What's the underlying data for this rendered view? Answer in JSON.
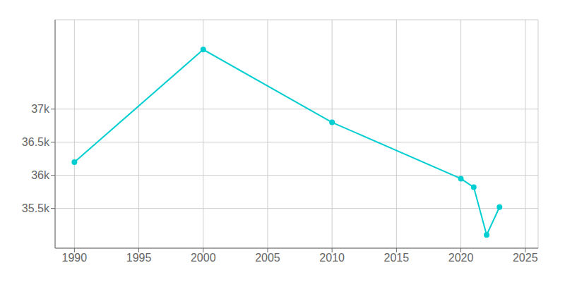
{
  "chart_data": {
    "type": "line",
    "x": [
      1990,
      2000,
      2010,
      2020,
      2021,
      2022,
      2023
    ],
    "values": [
      36200,
      37900,
      36800,
      35950,
      35820,
      35100,
      35520
    ],
    "color": "#00CED1",
    "marker": "circle",
    "xlim": [
      1988.5,
      2026
    ],
    "ylim": [
      34900,
      38350
    ],
    "xticks": [
      1990,
      1995,
      2000,
      2005,
      2010,
      2015,
      2020,
      2025
    ],
    "yticks": [
      {
        "value": 35500,
        "label": "35.5k"
      },
      {
        "value": 36000,
        "label": "36k"
      },
      {
        "value": 36500,
        "label": "36.5k"
      },
      {
        "value": 37000,
        "label": "37k"
      }
    ],
    "grid": true
  }
}
